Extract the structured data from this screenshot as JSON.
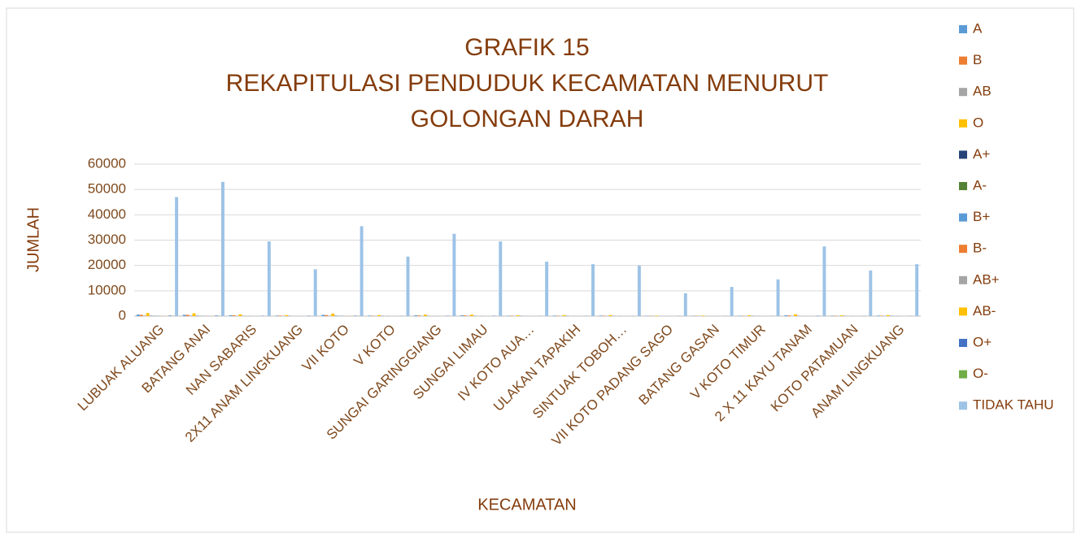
{
  "chart_data": {
    "type": "bar",
    "title_lines": [
      "GRAFIK 15",
      "REKAPITULASI PENDUDUK KECAMATAN MENURUT",
      "GOLONGAN DARAH"
    ],
    "x_label": "KECAMATAN",
    "y_label": "JUMLAH",
    "categories": [
      "LUBUAK ALUANG",
      "BATANG ANAI",
      "NAN SABARIS",
      "2X11 ANAM LINGKUANG",
      "VII KOTO",
      "V KOTO",
      "SUNGAI GARINGGIANG",
      "SUNGAI LIMAU",
      "IV KOTO AUA…",
      "ULAKAN TAPAKIH",
      "SINTUAK TOBOH…",
      "VII KOTO PADANG SAGO",
      "BATANG GASAN",
      "V KOTO TIMUR",
      "2 X 11 KAYU TANAM",
      "KOTO PATAMUAN",
      "ANAM LINGKUANG"
    ],
    "series": [
      {
        "name": "A",
        "color": "#5b9bd5",
        "values": [
          600,
          500,
          300,
          200,
          500,
          200,
          300,
          300,
          150,
          200,
          200,
          100,
          100,
          150,
          300,
          150,
          200
        ]
      },
      {
        "name": "B",
        "color": "#ed7d31",
        "values": [
          500,
          500,
          300,
          200,
          400,
          150,
          250,
          250,
          150,
          150,
          150,
          100,
          100,
          100,
          250,
          150,
          150
        ]
      },
      {
        "name": "AB",
        "color": "#a5a5a5",
        "values": [
          200,
          200,
          100,
          100,
          150,
          50,
          100,
          100,
          50,
          50,
          50,
          50,
          50,
          50,
          100,
          50,
          50
        ]
      },
      {
        "name": "O",
        "color": "#ffc000",
        "values": [
          1200,
          1100,
          700,
          400,
          1000,
          400,
          600,
          600,
          300,
          400,
          400,
          200,
          200,
          300,
          700,
          300,
          400
        ]
      },
      {
        "name": "A+",
        "color": "#264478",
        "values": [
          100,
          100,
          50,
          50,
          100,
          50,
          50,
          50,
          50,
          50,
          50,
          0,
          0,
          50,
          50,
          50,
          50
        ]
      },
      {
        "name": "A-",
        "color": "#548235",
        "values": [
          50,
          50,
          0,
          0,
          50,
          0,
          0,
          0,
          0,
          0,
          0,
          0,
          0,
          0,
          0,
          0,
          0
        ]
      },
      {
        "name": "B+",
        "color": "#5b9bd5",
        "values": [
          100,
          100,
          50,
          50,
          100,
          50,
          50,
          50,
          50,
          50,
          50,
          0,
          0,
          50,
          50,
          50,
          50
        ]
      },
      {
        "name": "B-",
        "color": "#ed7d31",
        "values": [
          50,
          50,
          0,
          0,
          50,
          0,
          0,
          0,
          0,
          0,
          0,
          0,
          0,
          0,
          0,
          0,
          0
        ]
      },
      {
        "name": "AB+",
        "color": "#a5a5a5",
        "values": [
          50,
          50,
          0,
          0,
          50,
          0,
          0,
          0,
          0,
          0,
          0,
          0,
          0,
          0,
          0,
          0,
          0
        ]
      },
      {
        "name": "AB-",
        "color": "#ffc000",
        "values": [
          50,
          50,
          0,
          0,
          50,
          0,
          0,
          0,
          0,
          0,
          0,
          0,
          0,
          0,
          0,
          0,
          0
        ]
      },
      {
        "name": "O+",
        "color": "#4472c4",
        "values": [
          200,
          200,
          100,
          100,
          150,
          50,
          100,
          100,
          50,
          50,
          50,
          50,
          50,
          50,
          100,
          50,
          50
        ]
      },
      {
        "name": "O-",
        "color": "#70ad47",
        "values": [
          50,
          50,
          0,
          0,
          50,
          0,
          0,
          0,
          0,
          0,
          0,
          0,
          0,
          0,
          0,
          0,
          0
        ]
      },
      {
        "name": "TIDAK TAHU",
        "color": "#9dc3e6",
        "values": [
          47000,
          53000,
          29500,
          18500,
          35500,
          23500,
          32500,
          29500,
          21500,
          20500,
          20000,
          9000,
          11500,
          14500,
          27500,
          18000,
          20500
        ]
      }
    ],
    "ylim": [
      0,
      60000
    ],
    "yticks": [
      0,
      10000,
      20000,
      30000,
      40000,
      50000,
      60000
    ],
    "grid": true,
    "legend": "right"
  }
}
